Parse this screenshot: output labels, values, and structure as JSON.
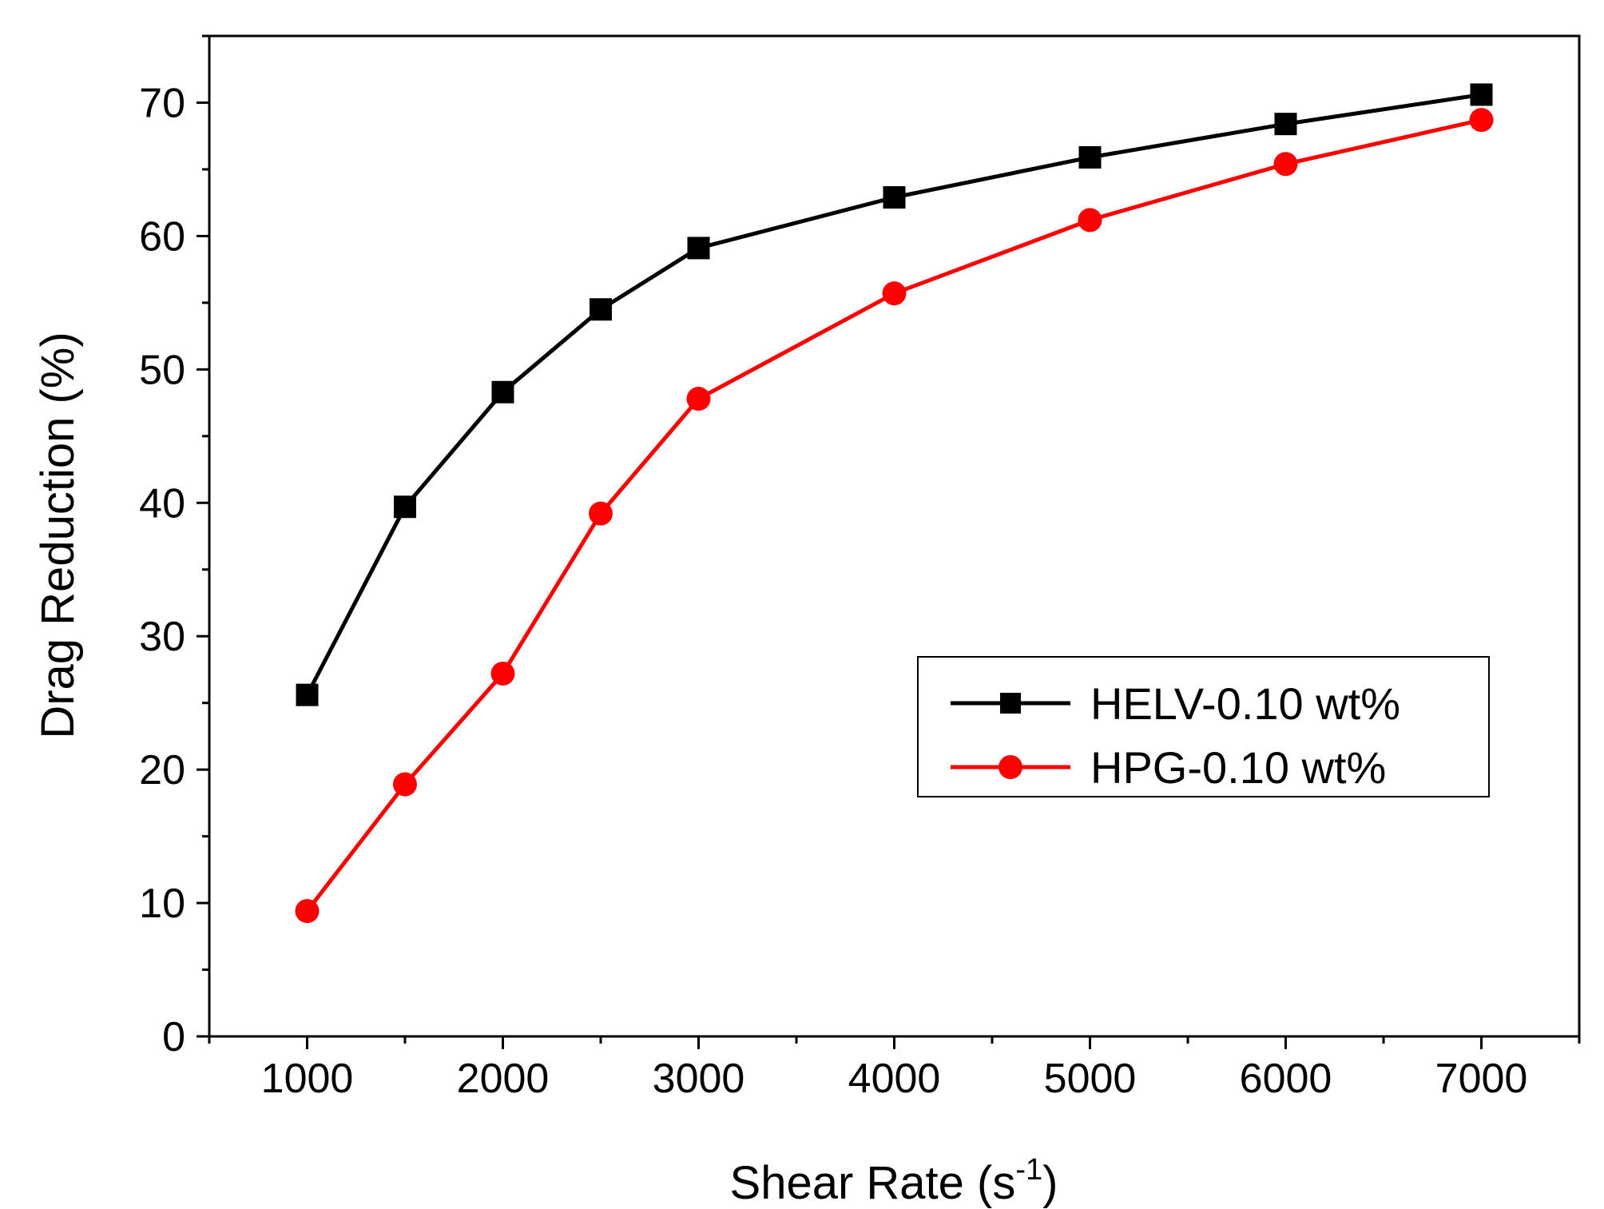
{
  "chart_data": {
    "type": "line",
    "title": "",
    "xlabel": "Shear Rate (s",
    "xlabel_superscript": "-1",
    "xlabel_suffix": ")",
    "ylabel": "Drag Reduction (%)",
    "xlim": [
      500,
      7500
    ],
    "ylim": [
      0,
      75
    ],
    "x_ticks": [
      1000,
      2000,
      3000,
      4000,
      5000,
      6000,
      7000
    ],
    "y_ticks": [
      0,
      10,
      20,
      30,
      40,
      50,
      60,
      70
    ],
    "x_minor_step": 500,
    "y_minor_step": 5,
    "grid": false,
    "legend_position": "center-right",
    "series": [
      {
        "name": "HELV-0.10 wt%",
        "color": "#000000",
        "marker": "square",
        "x": [
          1000,
          1500,
          2000,
          2500,
          3000,
          4000,
          5000,
          6000,
          7000
        ],
        "values": [
          25.6,
          39.7,
          48.3,
          54.5,
          59.1,
          62.9,
          65.9,
          68.4,
          70.6
        ]
      },
      {
        "name": "HPG-0.10 wt%",
        "color": "#ff0000",
        "marker": "circle",
        "x": [
          1000,
          1500,
          2000,
          2500,
          3000,
          4000,
          5000,
          6000,
          7000
        ],
        "values": [
          9.4,
          18.9,
          27.2,
          39.2,
          47.8,
          55.7,
          61.2,
          65.4,
          68.7
        ]
      }
    ]
  }
}
